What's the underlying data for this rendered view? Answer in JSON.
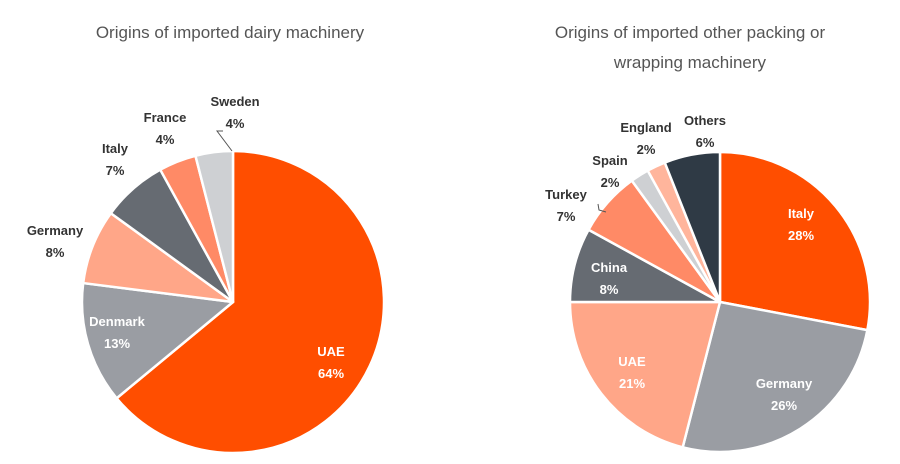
{
  "chart_data": [
    {
      "type": "pie",
      "title": "Origins of imported dairy machinery",
      "slices": [
        {
          "label": "UAE",
          "value": 64,
          "display": "64%",
          "color": "#FF4E00"
        },
        {
          "label": "Denmark",
          "value": 13,
          "display": "13%",
          "color": "#9A9DA3"
        },
        {
          "label": "Germany",
          "value": 8,
          "display": "8%",
          "color": "#FFA688"
        },
        {
          "label": "Italy",
          "value": 7,
          "display": "7%",
          "color": "#666B72"
        },
        {
          "label": "France",
          "value": 4,
          "display": "4%",
          "color": "#FF8A66"
        },
        {
          "label": "Sweden",
          "value": 4,
          "display": "4%",
          "color": "#CED0D3"
        }
      ]
    },
    {
      "type": "pie",
      "title_lines": [
        "Origins of imported other packing or",
        "wrapping machinery"
      ],
      "slices": [
        {
          "label": "Italy",
          "value": 28,
          "display": "28%",
          "color": "#FF4E00"
        },
        {
          "label": "Germany",
          "value": 26,
          "display": "26%",
          "color": "#9A9DA3"
        },
        {
          "label": "UAE",
          "value": 21,
          "display": "21%",
          "color": "#FFA688"
        },
        {
          "label": "China",
          "value": 8,
          "display": "8%",
          "color": "#666B72"
        },
        {
          "label": "Turkey",
          "value": 7,
          "display": "7%",
          "color": "#FF8A66"
        },
        {
          "label": "Spain",
          "value": 2,
          "display": "2%",
          "color": "#CED0D3"
        },
        {
          "label": "England",
          "value": 2,
          "display": "2%",
          "color": "#FFB59C"
        },
        {
          "label": "Others",
          "value": 6,
          "display": "6%",
          "color": "#2F3A45"
        }
      ]
    }
  ]
}
